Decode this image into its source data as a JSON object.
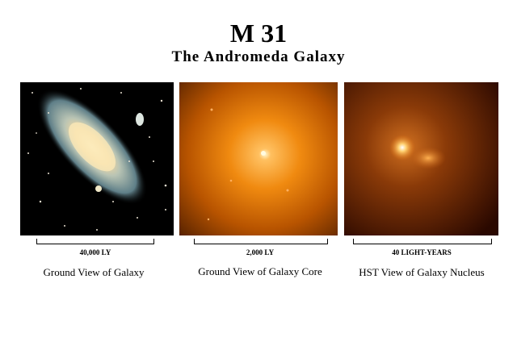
{
  "header": {
    "title": "M 31",
    "subtitle": "The Andromeda Galaxy"
  },
  "panels": [
    {
      "scale": "40,000 LY",
      "caption": "Ground View of Galaxy"
    },
    {
      "scale": "2,000 LY",
      "caption": "Ground View of Galaxy Core"
    },
    {
      "scale": "40 LIGHT-YEARS",
      "caption": "HST View of Galaxy Nucleus"
    }
  ]
}
